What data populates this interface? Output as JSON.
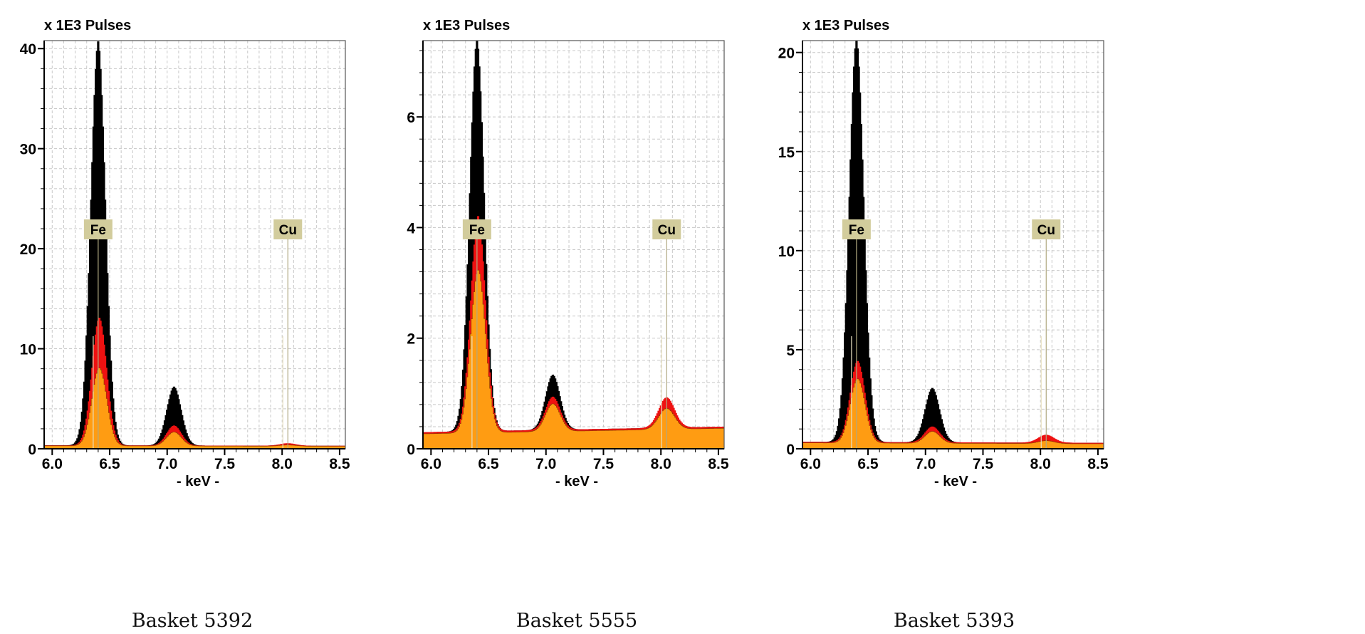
{
  "chart_data": [
    {
      "type": "area",
      "caption": "Basket 5392",
      "ylabel": "x 1E3 Pulses",
      "xlabel": "- keV -",
      "xlim": [
        5.93,
        8.55
      ],
      "ylim": [
        0,
        40.8
      ],
      "xticks": [
        "6.0",
        "6.5",
        "7.0",
        "7.5",
        "8.0",
        "8.5"
      ],
      "yticks": [
        "0",
        "10",
        "20",
        "30",
        "40"
      ],
      "ytick_values": [
        0,
        10,
        20,
        30,
        40
      ],
      "ygrid_step": 2,
      "grid": true,
      "element_markers": [
        {
          "label": "Fe",
          "keV": 6.4
        },
        {
          "label": "Cu",
          "keV": 8.05
        }
      ],
      "series": [
        {
          "name": "black",
          "color": "#000000",
          "baseline": [
            0.35,
            0.3
          ],
          "peaks": [
            [
              6.4,
              40.5,
              0.065
            ],
            [
              7.06,
              5.9,
              0.065
            ],
            [
              8.05,
              0.2,
              0.07
            ]
          ]
        },
        {
          "name": "red",
          "color": "#ee1111",
          "baseline": [
            0.35,
            0.3
          ],
          "peaks": [
            [
              6.41,
              12.8,
              0.065
            ],
            [
              7.06,
              2.0,
              0.065
            ],
            [
              8.05,
              0.25,
              0.07
            ]
          ]
        },
        {
          "name": "orange",
          "color": "#ff9c12",
          "baseline": [
            0.3,
            0.25
          ],
          "peaks": [
            [
              6.41,
              7.8,
              0.065
            ],
            [
              7.06,
              1.4,
              0.065
            ],
            [
              8.05,
              0.12,
              0.07
            ]
          ]
        }
      ]
    },
    {
      "type": "area",
      "caption": "Basket 5555",
      "ylabel": "x 1E3 Pulses",
      "xlabel": "- keV -",
      "xlim": [
        5.93,
        8.55
      ],
      "ylim": [
        0,
        7.38
      ],
      "xticks": [
        "6.0",
        "6.5",
        "7.0",
        "7.5",
        "8.0",
        "8.5"
      ],
      "yticks": [
        "0",
        "2",
        "4",
        "6"
      ],
      "ytick_values": [
        0,
        2,
        4,
        6
      ],
      "ygrid_step": 0.4,
      "grid": true,
      "element_markers": [
        {
          "label": "Fe",
          "keV": 6.4
        },
        {
          "label": "Cu",
          "keV": 8.05
        }
      ],
      "series": [
        {
          "name": "black",
          "color": "#000000",
          "baseline": [
            0.3,
            0.4
          ],
          "peaks": [
            [
              6.4,
              7.1,
              0.065
            ],
            [
              7.06,
              1.0,
              0.065
            ],
            [
              8.05,
              0.45,
              0.07
            ]
          ]
        },
        {
          "name": "red",
          "color": "#ee1111",
          "baseline": [
            0.3,
            0.4
          ],
          "peaks": [
            [
              6.41,
              3.9,
              0.065
            ],
            [
              7.06,
              0.6,
              0.065
            ],
            [
              8.05,
              0.55,
              0.07
            ]
          ]
        },
        {
          "name": "orange",
          "color": "#ff9c12",
          "baseline": [
            0.27,
            0.37
          ],
          "peaks": [
            [
              6.41,
              2.95,
              0.065
            ],
            [
              7.06,
              0.5,
              0.065
            ],
            [
              8.05,
              0.38,
              0.07
            ]
          ]
        }
      ]
    },
    {
      "type": "area",
      "caption": "Basket 5393",
      "ylabel": "x 1E3 Pulses",
      "xlabel": "- keV -",
      "xlim": [
        5.93,
        8.55
      ],
      "ylim": [
        0,
        20.6
      ],
      "xticks": [
        "6.0",
        "6.5",
        "7.0",
        "7.5",
        "8.0",
        "8.5"
      ],
      "yticks": [
        "0",
        "5",
        "10",
        "15",
        "20"
      ],
      "ytick_values": [
        0,
        5,
        10,
        15,
        20
      ],
      "ygrid_step": 1,
      "grid": true,
      "element_markers": [
        {
          "label": "Fe",
          "keV": 6.4
        },
        {
          "label": "Cu",
          "keV": 8.05
        }
      ],
      "series": [
        {
          "name": "black",
          "color": "#000000",
          "baseline": [
            0.35,
            0.3
          ],
          "peaks": [
            [
              6.4,
              20.4,
              0.065
            ],
            [
              7.06,
              2.75,
              0.065
            ],
            [
              8.05,
              0.3,
              0.07
            ]
          ]
        },
        {
          "name": "red",
          "color": "#ee1111",
          "baseline": [
            0.35,
            0.3
          ],
          "peaks": [
            [
              6.41,
              4.1,
              0.065
            ],
            [
              7.06,
              0.8,
              0.065
            ],
            [
              8.05,
              0.4,
              0.07
            ]
          ]
        },
        {
          "name": "orange",
          "color": "#ff9c12",
          "baseline": [
            0.3,
            0.25
          ],
          "peaks": [
            [
              6.41,
              3.25,
              0.065
            ],
            [
              7.06,
              0.6,
              0.065
            ],
            [
              8.05,
              0.15,
              0.07
            ]
          ]
        }
      ]
    }
  ]
}
